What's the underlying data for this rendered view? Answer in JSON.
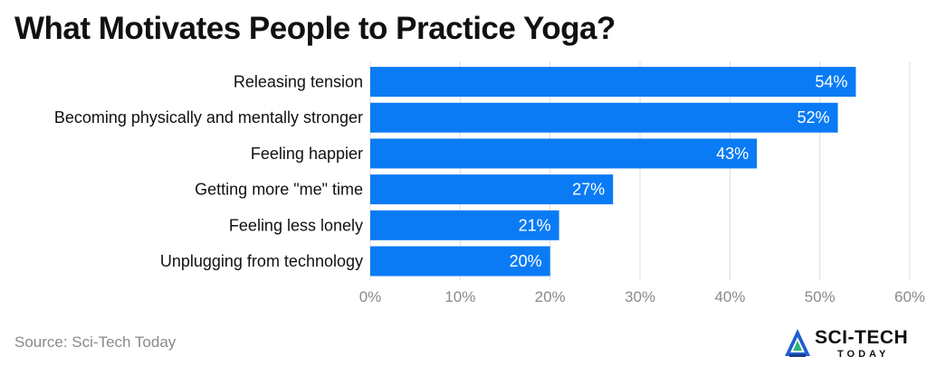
{
  "header": {
    "title": "What Motivates People to Practice Yoga?"
  },
  "footer": {
    "source": "Source: Sci-Tech Today"
  },
  "logo": {
    "name": "SCI-TECH",
    "sub": "TODAY",
    "icon": "sci-tech-logo-icon"
  },
  "colors": {
    "bar": "#0a7bf4",
    "grid": "#dcdcdc",
    "label": "#111111",
    "tick": "#8a8a8a"
  },
  "chart_data": {
    "type": "bar",
    "orientation": "horizontal",
    "categories": [
      "Releasing tension",
      "Becoming physically and mentally stronger",
      "Feeling happier",
      "Getting more \"me\" time",
      "Feeling less lonely",
      "Unplugging from technology"
    ],
    "values": [
      54,
      52,
      43,
      27,
      21,
      20
    ],
    "data_labels": [
      "54%",
      "52%",
      "43%",
      "27%",
      "21%",
      "20%"
    ],
    "xlim": [
      0,
      60
    ],
    "xticks": [
      0,
      10,
      20,
      30,
      40,
      50,
      60
    ],
    "xtick_labels": [
      "0%",
      "10%",
      "20%",
      "30%",
      "40%",
      "50%",
      "60%"
    ],
    "grid": true,
    "legend": "none"
  }
}
